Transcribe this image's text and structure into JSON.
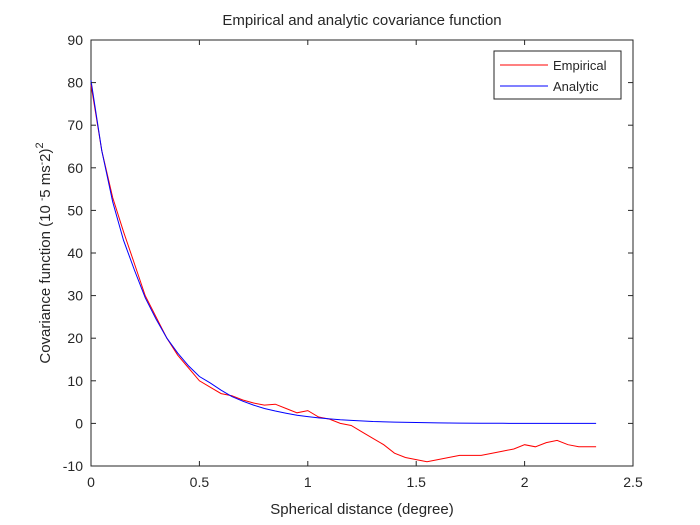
{
  "chart_data": {
    "type": "line",
    "title": "Empirical and analytic covariance function",
    "xlabel": "Spherical distance (degree)",
    "ylabel": "Covariance function (10 ^{-5} ms^{-2})^2",
    "xlim": [
      0,
      2.5
    ],
    "ylim": [
      -10,
      90
    ],
    "xticks": [
      0,
      0.5,
      1,
      1.5,
      2,
      2.5
    ],
    "yticks": [
      -10,
      0,
      10,
      20,
      30,
      40,
      50,
      60,
      70,
      80,
      90
    ],
    "grid": false,
    "legend_position": "top-right",
    "series": [
      {
        "name": "Empirical",
        "color": "#ff0000",
        "x": [
          0,
          0.05,
          0.1,
          0.15,
          0.2,
          0.25,
          0.3,
          0.35,
          0.4,
          0.45,
          0.5,
          0.55,
          0.6,
          0.65,
          0.7,
          0.75,
          0.8,
          0.85,
          0.9,
          0.95,
          1.0,
          1.05,
          1.1,
          1.15,
          1.2,
          1.25,
          1.3,
          1.35,
          1.4,
          1.45,
          1.5,
          1.55,
          1.6,
          1.65,
          1.7,
          1.75,
          1.8,
          1.85,
          1.9,
          1.95,
          2.0,
          2.05,
          2.1,
          2.15,
          2.2,
          2.25,
          2.33
        ],
        "y": [
          79.5,
          64,
          53,
          45,
          37.5,
          30,
          25,
          20,
          16,
          13,
          10,
          8.5,
          7,
          6.5,
          5.5,
          4.8,
          4.3,
          4.5,
          3.5,
          2.5,
          3,
          1.5,
          1,
          0,
          -0.5,
          -2,
          -3.5,
          -5,
          -7,
          -8,
          -8.5,
          -9,
          -8.5,
          -8,
          -7.5,
          -7.5,
          -7.5,
          -7,
          -6.5,
          -6,
          -5,
          -5.5,
          -4.5,
          -4,
          -5,
          -5.5,
          -5.5
        ]
      },
      {
        "name": "Analytic",
        "color": "#0000ff",
        "x": [
          0,
          0.05,
          0.1,
          0.15,
          0.2,
          0.25,
          0.3,
          0.35,
          0.4,
          0.45,
          0.5,
          0.55,
          0.6,
          0.65,
          0.7,
          0.75,
          0.8,
          0.85,
          0.9,
          0.95,
          1.0,
          1.05,
          1.1,
          1.15,
          1.2,
          1.3,
          1.4,
          1.5,
          1.6,
          1.7,
          1.8,
          1.9,
          2.0,
          2.1,
          2.2,
          2.33
        ],
        "y": [
          80.5,
          64,
          52,
          43,
          36,
          29.5,
          24.5,
          20,
          16.5,
          13.5,
          11,
          9.5,
          7.8,
          6.3,
          5.2,
          4.3,
          3.5,
          2.9,
          2.4,
          1.9,
          1.6,
          1.3,
          1.05,
          0.85,
          0.7,
          0.45,
          0.3,
          0.2,
          0.12,
          0.07,
          0.04,
          0.02,
          0.01,
          0.0,
          0.0,
          0.0
        ]
      }
    ]
  }
}
